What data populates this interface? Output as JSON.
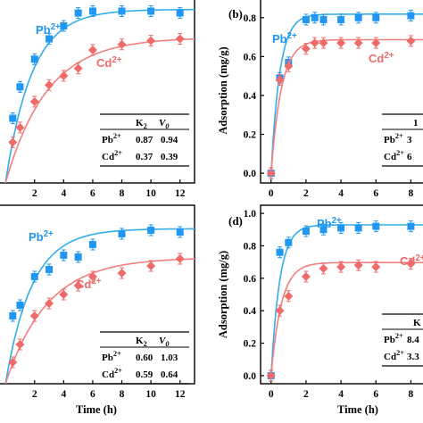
{
  "colors": {
    "pb": "#2196F3",
    "cd": "#EF6B6B",
    "pb_fit": "#33AEEA",
    "cd_fit": "#F08080"
  },
  "chart_data": [
    {
      "panel": "a",
      "type": "scatter",
      "panel_label": "",
      "xlabel": "",
      "ylabel": "",
      "xlim": [
        -0.5,
        13
      ],
      "ylim": [
        0,
        1.0
      ],
      "xticks": [
        "2",
        "4",
        "6",
        "8",
        "10",
        "12"
      ],
      "series": [
        {
          "name": "Pb2+",
          "marker": "square",
          "x": [
            0.5,
            1,
            2,
            3,
            4,
            5,
            6,
            8,
            10,
            12
          ],
          "y": [
            0.35,
            0.52,
            0.67,
            0.78,
            0.85,
            0.92,
            0.93,
            0.93,
            0.93,
            0.92
          ]
        },
        {
          "name": "Cd2+",
          "marker": "diamond",
          "x": [
            0.5,
            1,
            2,
            3,
            4,
            5,
            6,
            8,
            10,
            12
          ],
          "y": [
            0.22,
            0.3,
            0.44,
            0.53,
            0.58,
            0.62,
            0.72,
            0.75,
            0.77,
            0.78
          ]
        }
      ],
      "table": {
        "headers": [
          "",
          "K",
          "2",
          "V",
          "0"
        ],
        "rows": [
          [
            "Pb",
            "2+",
            "0.87",
            "0.94"
          ],
          [
            "Cd",
            "2+",
            "0.37",
            "0.39"
          ]
        ]
      }
    },
    {
      "panel": "b",
      "type": "scatter",
      "panel_label": "(b)",
      "xlabel": "",
      "ylabel": "Adsorption (mg/g)",
      "xlim": [
        -0.6,
        9
      ],
      "ylim": [
        -0.05,
        0.9
      ],
      "xticks": [
        "0",
        "2",
        "4",
        "6",
        "8"
      ],
      "yticks": [
        "0.0",
        "0.2",
        "0.4",
        "0.6",
        "0.8"
      ],
      "series": [
        {
          "name": "Pb2+",
          "marker": "square",
          "x": [
            0,
            0.5,
            1,
            2,
            2.5,
            3,
            4,
            5,
            6,
            8
          ],
          "y": [
            0,
            0.49,
            0.57,
            0.79,
            0.8,
            0.79,
            0.79,
            0.8,
            0.8,
            0.81
          ]
        },
        {
          "name": "Cd2+",
          "marker": "diamond",
          "x": [
            0,
            0.5,
            1,
            2,
            2.5,
            3,
            4,
            5,
            6,
            8
          ],
          "y": [
            0,
            0.48,
            0.55,
            0.64,
            0.67,
            0.67,
            0.67,
            0.67,
            0.67,
            0.68
          ]
        }
      ],
      "table": {
        "headers": [
          "1"
        ],
        "rows": [
          [
            "Pb",
            "2+",
            "3"
          ],
          [
            "Cd",
            "2+",
            "6"
          ]
        ]
      }
    },
    {
      "panel": "c",
      "type": "scatter",
      "panel_label": "",
      "xlabel": "Time (h)",
      "ylabel": "",
      "xlim": [
        -0.5,
        13
      ],
      "ylim": [
        0,
        1.0
      ],
      "xticks": [
        "2",
        "4",
        "6",
        "8",
        "10",
        "12"
      ],
      "series": [
        {
          "name": "Pb2+",
          "marker": "square",
          "x": [
            0.5,
            1,
            2,
            3,
            4,
            5,
            6,
            8,
            10,
            12
          ],
          "y": [
            0.38,
            0.44,
            0.6,
            0.64,
            0.72,
            0.71,
            0.78,
            0.84,
            0.86,
            0.85
          ]
        },
        {
          "name": "Cd2+",
          "marker": "diamond",
          "x": [
            0.5,
            1,
            2,
            3,
            4,
            5,
            6,
            8,
            10,
            12
          ],
          "y": [
            0.12,
            0.22,
            0.38,
            0.45,
            0.5,
            0.55,
            0.6,
            0.62,
            0.66,
            0.7
          ]
        }
      ],
      "table": {
        "headers": [
          "",
          "K",
          "2",
          "V",
          "0"
        ],
        "rows": [
          [
            "Pb",
            "2+",
            "0.60",
            "1.03"
          ],
          [
            "Cd",
            "2+",
            "0.59",
            "0.64"
          ]
        ]
      }
    },
    {
      "panel": "d",
      "type": "scatter",
      "panel_label": "(d)",
      "xlabel": "Time (h)",
      "ylabel": "Adsorption (mg/g)",
      "xlim": [
        -0.6,
        9
      ],
      "ylim": [
        -0.05,
        1.05
      ],
      "xticks": [
        "0",
        "2",
        "4",
        "6",
        "8"
      ],
      "yticks": [
        "0.0",
        "0.2",
        "0.4",
        "0.6",
        "0.8",
        "1.0"
      ],
      "series": [
        {
          "name": "Pb2+",
          "marker": "square",
          "x": [
            0,
            0.5,
            1,
            2,
            3,
            4,
            5,
            6,
            8
          ],
          "y": [
            0,
            0.76,
            0.82,
            0.89,
            0.9,
            0.91,
            0.91,
            0.92,
            0.92
          ]
        },
        {
          "name": "Cd2+",
          "marker": "diamond",
          "x": [
            0,
            0.5,
            1,
            2,
            3,
            4,
            5,
            6,
            8
          ],
          "y": [
            0,
            0.4,
            0.49,
            0.61,
            0.66,
            0.67,
            0.68,
            0.67,
            0.69
          ]
        }
      ],
      "table": {
        "headers": [
          "K"
        ],
        "rows": [
          [
            "Pb",
            "2+",
            "8.4"
          ],
          [
            "Cd",
            "2+",
            "3.3"
          ]
        ]
      }
    }
  ]
}
